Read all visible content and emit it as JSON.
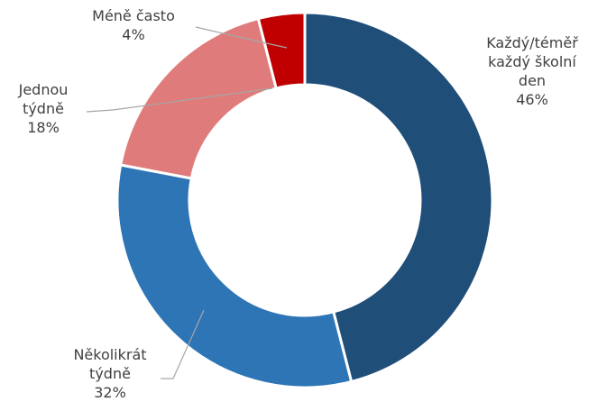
{
  "chart_data": {
    "type": "donut",
    "categories": [
      "Každý/téměř každý školní den",
      "Několikrát týdně",
      "Jednou týdně",
      "Méně často"
    ],
    "values": [
      46,
      32,
      18,
      4
    ],
    "value_labels": [
      "46%",
      "32%",
      "18%",
      "4%"
    ],
    "colors": [
      "#1f4e79",
      "#2e75b6",
      "#e07b7b",
      "#c00000"
    ]
  }
}
